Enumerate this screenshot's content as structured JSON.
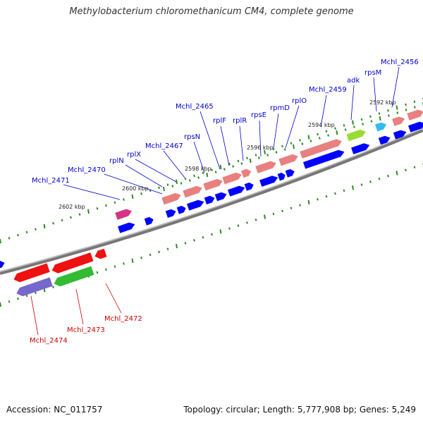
{
  "header": {
    "title": "Methylobacterium chloromethanicum CM4, complete genome"
  },
  "footer": {
    "accession": "Accession: NC_011757",
    "topology": "Topology: circular; Length: 5,777,908 bp; Genes: 5,249"
  },
  "colors": {
    "forward_label": "#0000cc",
    "reverse_label": "#cc0000",
    "backbone": "#888888",
    "tick": "#2e8b22",
    "cds_arrow": "#0000ff"
  },
  "ruler": {
    "kbp_labels": [
      "2602 kbp",
      "2600 kbp",
      "2598 kbp",
      "2596 kbp",
      "2594 kbp",
      "2592 kbp"
    ]
  },
  "genes": {
    "forward_labels": [
      "Mchl_2471",
      "Mchl_2470",
      "rplN",
      "rplX",
      "Mchl_2467",
      "rpsN",
      "Mchl_2465",
      "rplF",
      "rplR",
      "rpsE",
      "rpmD",
      "rplO",
      "Mchl_2459",
      "adk",
      "rpsM",
      "Mchl_2456"
    ],
    "reverse_labels": [
      "Mchl_2474",
      "Mchl_2473",
      "Mchl_2472"
    ],
    "feature_colors": [
      "#d63384",
      "#e88080",
      "#e88080",
      "#e88080",
      "#e88080",
      "#e88080",
      "#e88080",
      "#e88080",
      "#e88080",
      "#99dd33",
      "#33bbee",
      "#e88080",
      "#e88080",
      "#aaaaaa"
    ]
  }
}
